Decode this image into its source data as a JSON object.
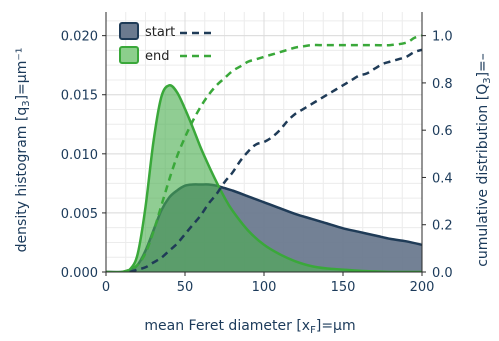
{
  "chart_data": {
    "type": "area",
    "xlabel": "mean Feret diameter [x",
    "xlabel_sub": "F",
    "xlabel_tail": "]=µm",
    "ylabel_left": "density histogram [q",
    "ylabel_left_sub": "3",
    "ylabel_left_tail": "]=µm⁻¹",
    "ylabel_right": "cumulative distribution [Q",
    "ylabel_right_sub": "3",
    "ylabel_right_tail": "]=–",
    "xlim": [
      0,
      200
    ],
    "ylim_left": [
      0,
      0.022
    ],
    "ylim_right": [
      0,
      1.1
    ],
    "x_ticks": [
      "0",
      "50",
      "100",
      "150",
      "200"
    ],
    "y_left_ticks": [
      "0.000",
      "0.005",
      "0.010",
      "0.015",
      "0.020"
    ],
    "y_right_ticks": [
      "0.0",
      "0.2",
      "0.4",
      "0.6",
      "0.8",
      "1.0"
    ],
    "grid": true,
    "legend_position": "top-left",
    "series": [
      {
        "name": "start",
        "color": "#1f3b57",
        "fill": "#6b7a8f",
        "density": {
          "x": [
            0,
            10,
            15,
            20,
            25,
            30,
            35,
            40,
            45,
            50,
            55,
            60,
            65,
            70,
            75,
            80,
            90,
            100,
            110,
            120,
            130,
            140,
            150,
            160,
            170,
            180,
            190,
            200
          ],
          "y": [
            0,
            0,
            0.0001,
            0.0006,
            0.0018,
            0.0035,
            0.0052,
            0.0063,
            0.0069,
            0.0073,
            0.0074,
            0.0074,
            0.0074,
            0.0073,
            0.0071,
            0.0069,
            0.0064,
            0.0059,
            0.0054,
            0.0049,
            0.0045,
            0.0041,
            0.0037,
            0.0034,
            0.0031,
            0.0028,
            0.0026,
            0.0023
          ]
        },
        "cumulative": {
          "x": [
            15,
            20,
            25,
            30,
            35,
            40,
            45,
            50,
            55,
            60,
            65,
            70,
            75,
            80,
            85,
            90,
            95,
            100,
            105,
            110,
            115,
            120,
            125,
            130,
            135,
            140,
            145,
            150,
            155,
            160,
            165,
            170,
            175,
            180,
            185,
            190,
            195,
            200
          ],
          "y": [
            0,
            0.01,
            0.02,
            0.04,
            0.06,
            0.09,
            0.12,
            0.16,
            0.2,
            0.24,
            0.29,
            0.33,
            0.38,
            0.42,
            0.47,
            0.51,
            0.54,
            0.55,
            0.57,
            0.6,
            0.64,
            0.67,
            0.69,
            0.71,
            0.73,
            0.75,
            0.77,
            0.79,
            0.81,
            0.83,
            0.84,
            0.86,
            0.88,
            0.89,
            0.9,
            0.91,
            0.93,
            0.94
          ]
        }
      },
      {
        "name": "end",
        "color": "#3aa83a",
        "fill": "#4caf50",
        "density": {
          "x": [
            0,
            10,
            15,
            20,
            25,
            30,
            35,
            40,
            45,
            50,
            55,
            60,
            65,
            70,
            75,
            80,
            90,
            100,
            110,
            120,
            130,
            140,
            150,
            160,
            170,
            180,
            190,
            200
          ],
          "y": [
            0,
            0,
            0.0002,
            0.0015,
            0.0055,
            0.011,
            0.0148,
            0.0158,
            0.0152,
            0.0138,
            0.0122,
            0.0105,
            0.009,
            0.0076,
            0.0063,
            0.0052,
            0.0035,
            0.0023,
            0.0015,
            0.0009,
            0.0005,
            0.0003,
            0.0002,
            0.0001,
            5e-05,
            0,
            0,
            0
          ]
        },
        "cumulative": {
          "x": [
            10,
            15,
            20,
            25,
            30,
            35,
            40,
            45,
            50,
            55,
            60,
            65,
            70,
            75,
            80,
            85,
            90,
            95,
            100,
            105,
            110,
            115,
            120,
            125,
            130,
            135,
            140,
            150,
            160,
            170,
            180,
            190,
            195,
            200
          ],
          "y": [
            0,
            0.01,
            0.03,
            0.08,
            0.17,
            0.28,
            0.39,
            0.49,
            0.57,
            0.64,
            0.7,
            0.75,
            0.79,
            0.82,
            0.85,
            0.87,
            0.89,
            0.9,
            0.91,
            0.92,
            0.93,
            0.94,
            0.95,
            0.955,
            0.96,
            0.96,
            0.96,
            0.96,
            0.96,
            0.96,
            0.96,
            0.97,
            0.99,
            1.0
          ]
        }
      }
    ]
  }
}
